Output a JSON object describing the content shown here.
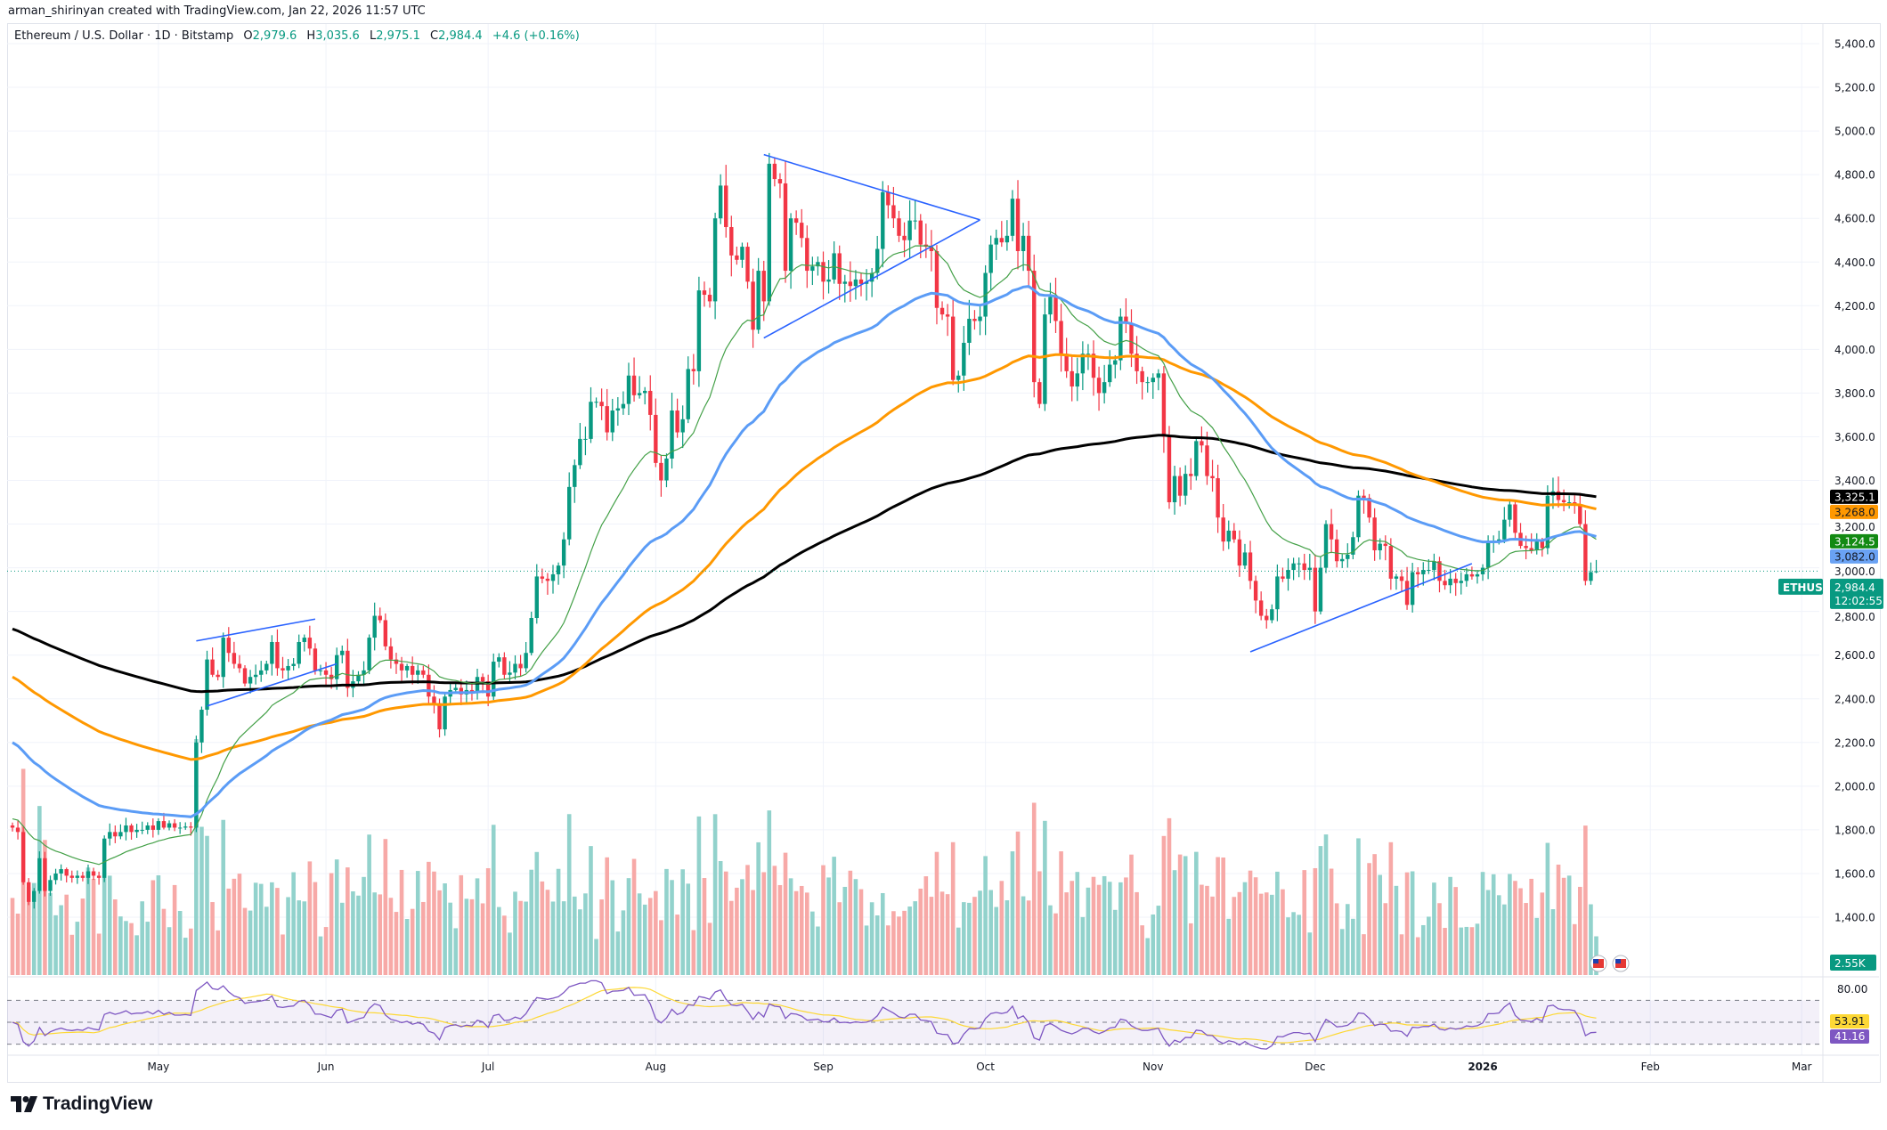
{
  "credit": "arman_shirinyan created with TradingView.com, Jan 22, 2026 11:57 UTC",
  "legend": {
    "symbol": "Ethereum / U.S. Dollar · 1D · Bitstamp",
    "open_label": "O",
    "open": "2,979.6",
    "high_label": "H",
    "high": "3,035.6",
    "low_label": "L",
    "low": "2,975.1",
    "close_label": "C",
    "close": "2,984.4",
    "change": "+4.6 (+0.16%)"
  },
  "logo_text": "TradingView",
  "colors": {
    "up": "#089981",
    "down": "#f23645",
    "volume_up": "#92d2cc",
    "volume_down": "#f7a9a7",
    "ema20": "#43a047",
    "ema50": "#5b9cf6",
    "ema100": "#ff9800",
    "ema200": "#000000",
    "trendline": "#2962ff",
    "rsi": "#7e57c2",
    "rsi_ma": "#fdd835",
    "grid": "#f0f3fa"
  },
  "chart_data": {
    "type": "candlestick",
    "symbol": "ETHUSD",
    "timeframe": "1D",
    "start_date": "2025-04-04",
    "ylim": [
      1300,
      5450
    ],
    "price_ticks": [
      1400,
      1600,
      1800,
      2000,
      2200,
      2400,
      2600,
      2800,
      3000,
      3200,
      3400,
      3600,
      3800,
      4000,
      4200,
      4400,
      4600,
      4800,
      5000,
      5200,
      5400
    ],
    "closes": [
      1810,
      1790,
      1560,
      1470,
      1520,
      1670,
      1520,
      1570,
      1600,
      1620,
      1590,
      1580,
      1590,
      1580,
      1610,
      1590,
      1580,
      1760,
      1790,
      1770,
      1790,
      1820,
      1790,
      1800,
      1800,
      1820,
      1800,
      1840,
      1810,
      1830,
      1810,
      1810,
      1815,
      1810,
      2200,
      2350,
      2580,
      2510,
      2500,
      2680,
      2610,
      2560,
      2540,
      2470,
      2500,
      2510,
      2530,
      2560,
      2660,
      2540,
      2530,
      2550,
      2560,
      2660,
      2680,
      2630,
      2530,
      2530,
      2510,
      2490,
      2600,
      2620,
      2450,
      2480,
      2510,
      2530,
      2680,
      2780,
      2760,
      2640,
      2580,
      2560,
      2530,
      2550,
      2510,
      2530,
      2510,
      2410,
      2380,
      2260,
      2410,
      2440,
      2450,
      2420,
      2440,
      2430,
      2500,
      2480,
      2410,
      2570,
      2590,
      2510,
      2520,
      2560,
      2540,
      2610,
      2770,
      2960,
      2950,
      2940,
      2970,
      3010,
      3130,
      3370,
      3470,
      3590,
      3590,
      3760,
      3760,
      3740,
      3620,
      3720,
      3730,
      3750,
      3880,
      3790,
      3800,
      3810,
      3700,
      3480,
      3400,
      3500,
      3720,
      3620,
      3680,
      3910,
      3900,
      4270,
      4250,
      4220,
      4600,
      4750,
      4560,
      4430,
      4410,
      4470,
      4310,
      4090,
      4360,
      4220,
      4850,
      4780,
      4760,
      4360,
      4600,
      4580,
      4510,
      4360,
      4380,
      4400,
      4310,
      4320,
      4440,
      4300,
      4310,
      4290,
      4320,
      4300,
      4310,
      4350,
      4460,
      4720,
      4660,
      4600,
      4520,
      4500,
      4590,
      4590,
      4480,
      4470,
      4450,
      4190,
      4160,
      4150,
      3860,
      3880,
      4030,
      4140,
      4130,
      4150,
      4350,
      4480,
      4510,
      4490,
      4520,
      4690,
      4450,
      4520,
      4360,
      3850,
      3750,
      4160,
      4240,
      4130,
      3980,
      3900,
      3830,
      3890,
      3980,
      3980,
      3870,
      3800,
      3850,
      3930,
      3950,
      4150,
      4120,
      3980,
      3900,
      3850,
      3850,
      3870,
      3890,
      3600,
      3300,
      3420,
      3330,
      3430,
      3420,
      3580,
      3560,
      3420,
      3410,
      3230,
      3120,
      3170,
      3130,
      3010,
      3070,
      2940,
      2850,
      2780,
      2760,
      2810,
      2960,
      2950,
      2990,
      3020,
      3020,
      2990,
      3000,
      2800,
      3000,
      3200,
      3130,
      3030,
      3040,
      3060,
      3140,
      3330,
      3320,
      3230,
      3080,
      3110,
      3100,
      2950,
      2960,
      2940,
      2830,
      2980,
      2970,
      2990,
      2990,
      3030,
      2940,
      2920,
      2950,
      2930,
      2940,
      2970,
      2960,
      2970,
      3000,
      3120,
      3120,
      3130,
      3220,
      3290,
      3160,
      3100,
      3090,
      3080,
      3120,
      3090,
      3330,
      3350,
      3310,
      3300,
      3300,
      3290,
      3200,
      2940,
      2980,
      2984.4
    ],
    "first_open": 1820,
    "last_candle": {
      "open": 2979.6,
      "high": 3035.6,
      "low": 2975.1,
      "close": 2984.4
    },
    "moving_averages": [
      {
        "key": "ema200",
        "period": 200,
        "start_value": 2720,
        "last_value": "3,325.1"
      },
      {
        "key": "ema100",
        "period": 100,
        "start_value": 2500,
        "last_value": "3,268.0"
      },
      {
        "key": "ema20",
        "period": 20,
        "start_value": 1850,
        "last_value": "3,124.5"
      },
      {
        "key": "ema50",
        "period": 50,
        "start_value": 2200,
        "last_value": "3,082.0"
      }
    ],
    "trendlines": [
      {
        "from": [
          "2025-08-21",
          4892
        ],
        "to": [
          "2025-09-30",
          4593
        ]
      },
      {
        "from": [
          "2025-08-21",
          4052
        ],
        "to": [
          "2025-09-30",
          4593
        ]
      },
      {
        "from": [
          "2025-05-08",
          2665
        ],
        "to": [
          "2025-05-30",
          2765
        ]
      },
      {
        "from": [
          "2025-05-10",
          2367
        ],
        "to": [
          "2025-06-03",
          2560
        ]
      },
      {
        "from": [
          "2025-11-19",
          2615
        ],
        "to": [
          "2025-12-30",
          3019
        ]
      }
    ],
    "last_price_label": {
      "symbol": "ETHUSD",
      "price": "2,984.4",
      "countdown": "12:02:55"
    },
    "volume_label": "2.55K",
    "rsi": {
      "period": 14,
      "ma_period": 14,
      "levels": [
        70,
        50,
        30
      ],
      "tick": "80.00",
      "ma_value": "53.91",
      "value": "41.16"
    },
    "time_axis": [
      {
        "label": "May",
        "date": "2025-05-01"
      },
      {
        "label": "Jun",
        "date": "2025-06-01"
      },
      {
        "label": "Jul",
        "date": "2025-07-01"
      },
      {
        "label": "Aug",
        "date": "2025-08-01"
      },
      {
        "label": "Sep",
        "date": "2025-09-01"
      },
      {
        "label": "Oct",
        "date": "2025-10-01"
      },
      {
        "label": "Nov",
        "date": "2025-11-01"
      },
      {
        "label": "Dec",
        "date": "2025-12-01"
      },
      {
        "label": "2026",
        "date": "2026-01-01",
        "bold": true
      },
      {
        "label": "Feb",
        "date": "2026-02-01"
      },
      {
        "label": "Mar",
        "date": "2026-03-01"
      }
    ]
  }
}
